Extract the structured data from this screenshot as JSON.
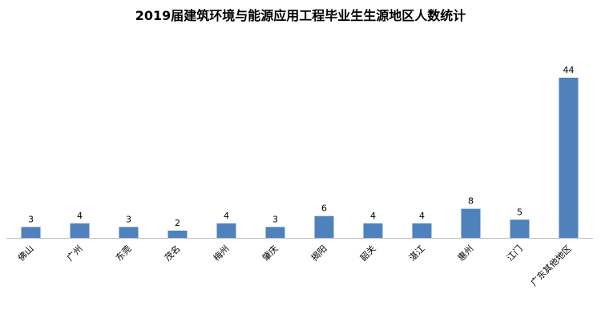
{
  "chart_data": {
    "type": "bar",
    "title": "2019届建筑环境与能源应用工程毕业生生源地区人数统计",
    "categories": [
      "佛山",
      "广州",
      "东莞",
      "茂名",
      "梅州",
      "肇庆",
      "揭阳",
      "韶关",
      "湛江",
      "惠州",
      "江门",
      "广东其他地区"
    ],
    "series": [
      {
        "values": [
          3,
          4,
          3,
          2,
          4,
          3,
          6,
          4,
          4,
          8,
          5,
          44
        ]
      }
    ],
    "data_labels": [
      "3",
      "4",
      "3",
      "2",
      "4",
      "3",
      "6",
      "4",
      "4",
      "8",
      "5",
      "44"
    ],
    "bar_color": "#4F81BD",
    "axis_color": "#BFBFBF",
    "ylim": [
      0,
      44
    ],
    "grid": false,
    "legend": "none",
    "xlabel": "",
    "ylabel": ""
  }
}
